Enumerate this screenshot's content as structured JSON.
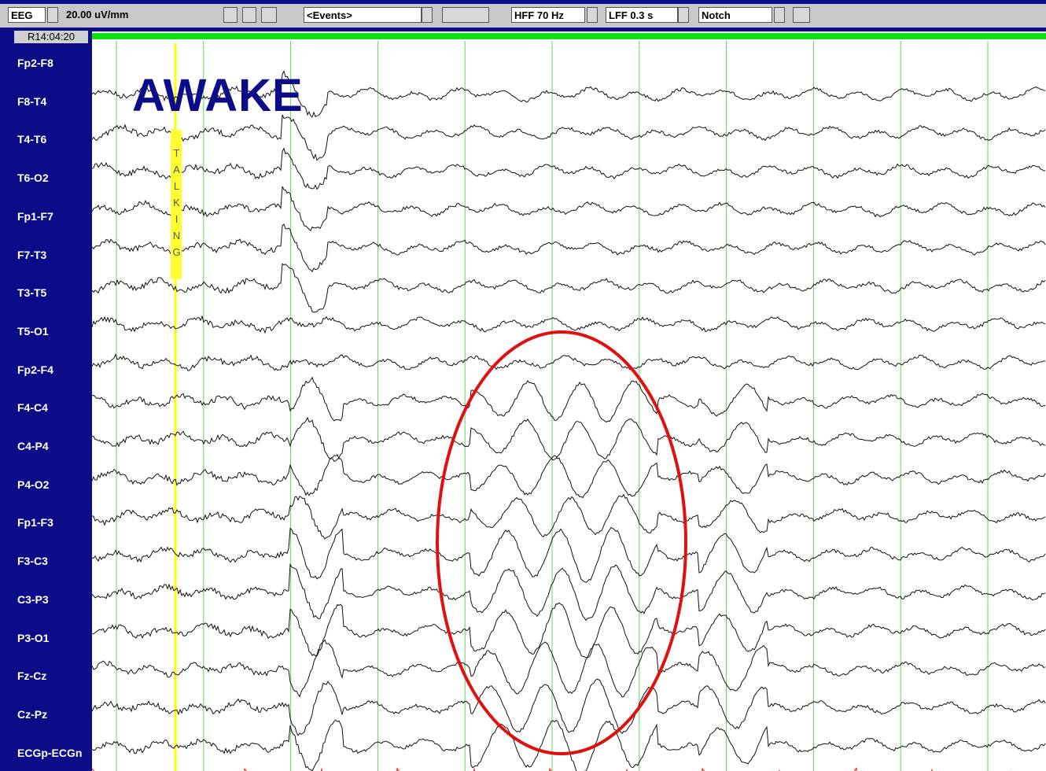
{
  "toolbar": {
    "montage": "EEG",
    "sensitivity": "20.00 uV/mm",
    "events": "<Events>",
    "hff": "HFF 70 Hz",
    "lff": "LFF 0.3 s",
    "notch": "Notch"
  },
  "time_label": "R14:04:20",
  "channels": [
    "Fp2-F8",
    "F8-T4",
    "T4-T6",
    "T6-O2",
    "Fp1-F7",
    "F7-T3",
    "T3-T5",
    "T5-O1",
    "Fp2-F4",
    "F4-C4",
    "C4-P4",
    "P4-O2",
    "Fp1-F3",
    "F3-C3",
    "C3-P3",
    "P3-O1",
    "Fz-Cz",
    "Cz-Pz",
    "ECGp-ECGn"
  ],
  "annotations": {
    "state": "AWAKE",
    "event": "TALKING"
  }
}
